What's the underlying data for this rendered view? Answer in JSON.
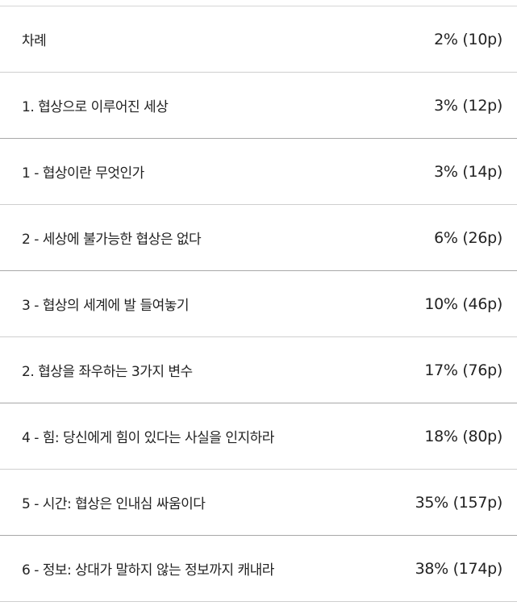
{
  "toc": {
    "items": [
      {
        "title": "차례",
        "position": "2% (10p)"
      },
      {
        "title": "1. 협상으로 이루어진 세상",
        "position": "3% (12p)"
      },
      {
        "title": "1 - 협상이란 무엇인가",
        "position": "3% (14p)"
      },
      {
        "title": "2 - 세상에 불가능한 협상은 없다",
        "position": "6% (26p)"
      },
      {
        "title": "3 - 협상의 세계에 발 들여놓기",
        "position": "10% (46p)"
      },
      {
        "title": "2. 협상을 좌우하는 3가지 변수",
        "position": "17% (76p)"
      },
      {
        "title": "4 - 힘: 당신에게 힘이 있다는 사실을 인지하라",
        "position": "18% (80p)"
      },
      {
        "title": "5 - 시간: 협상은 인내심 싸움이다",
        "position": "35% (157p)"
      },
      {
        "title": "6 - 정보: 상대가 말하지 않는 정보까지 캐내라",
        "position": "38% (174p)"
      }
    ]
  }
}
